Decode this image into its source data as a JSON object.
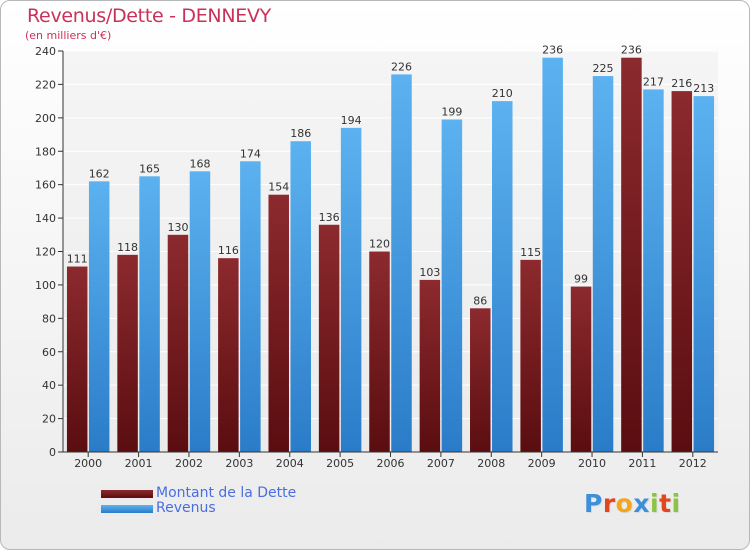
{
  "title": "Revenus/Dette - DENNEVY",
  "subtitle": "(en milliers d'€)",
  "logo": {
    "text": "Proxiti",
    "letters": [
      "P",
      "r",
      "o",
      "x",
      "i",
      "t",
      "i"
    ],
    "letter_colors": [
      "#3c8fd8",
      "#e2461e",
      "#f3a51b",
      "#3c8fd8",
      "#8bc43f",
      "#e2461e",
      "#8bc43f"
    ]
  },
  "colors": {
    "dette": "#7a1e22",
    "revenus": "#4aa3e8",
    "title": "#c8325a",
    "legend_text": "#4a6ee0"
  },
  "chart_data": {
    "type": "bar",
    "title": "Revenus/Dette - DENNEVY",
    "subtitle": "(en milliers d'€)",
    "categories": [
      "2000",
      "2001",
      "2002",
      "2003",
      "2004",
      "2005",
      "2006",
      "2007",
      "2008",
      "2009",
      "2010",
      "2011",
      "2012"
    ],
    "series": [
      {
        "name": "Montant de la Dette",
        "values": [
          111,
          118,
          130,
          116,
          154,
          136,
          120,
          103,
          86,
          115,
          99,
          236,
          216
        ]
      },
      {
        "name": "Revenus",
        "values": [
          162,
          165,
          168,
          174,
          186,
          194,
          226,
          199,
          210,
          236,
          225,
          217,
          213
        ]
      }
    ],
    "ylim": [
      0,
      240
    ],
    "yticks": [
      0,
      20,
      40,
      60,
      80,
      100,
      120,
      140,
      160,
      180,
      200,
      220,
      240
    ],
    "grid": true,
    "legend": "bottom-left"
  }
}
